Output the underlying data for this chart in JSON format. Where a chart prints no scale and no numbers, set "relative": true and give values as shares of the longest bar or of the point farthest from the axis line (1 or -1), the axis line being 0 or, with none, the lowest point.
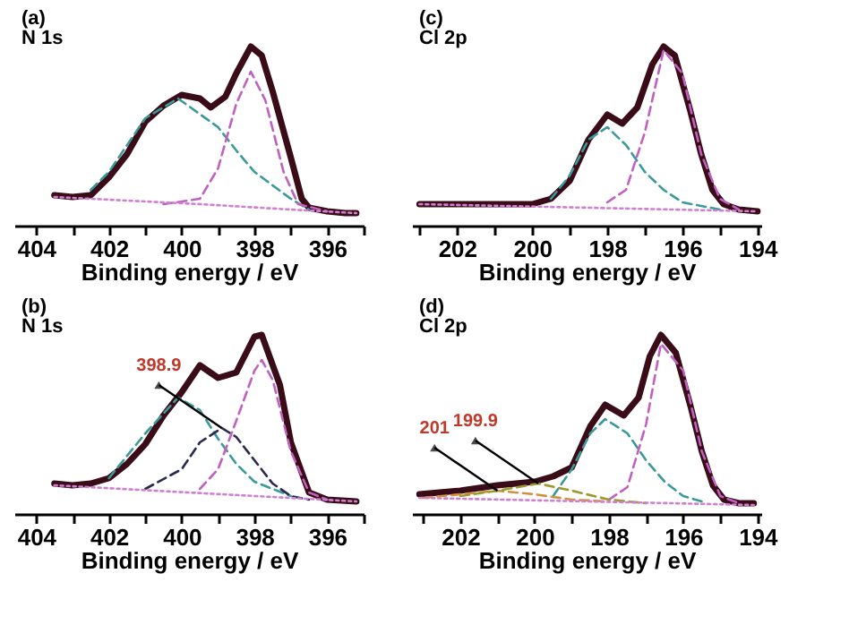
{
  "chart_data": [
    {
      "type": "line",
      "title": "(a)",
      "subtitle": "N 1s",
      "xlabel": "Binding energy / eV",
      "relative": true,
      "xlim": [
        404.6,
        395
      ],
      "xticks": [
        404,
        {
          "value": 403,
          "label": null
        },
        402,
        {
          "value": 401,
          "label": null
        },
        400,
        {
          "value": 399,
          "label": null
        },
        398,
        {
          "value": 397,
          "label": null
        },
        396,
        {
          "value": 395,
          "label": null
        }
      ],
      "tick_labels": "x",
      "grid": false,
      "marker": "none",
      "series": [
        {
          "color": "#3a0c18",
          "line_style": "solid",
          "x": [
            403.5,
            403,
            402.5,
            402,
            401.5,
            401,
            400.5,
            400,
            399.5,
            399.2,
            398.8,
            398.5,
            398.1,
            397.8,
            397.5,
            397,
            396.7,
            396.5,
            396,
            395.5,
            395.2
          ],
          "values": [
            0.17,
            0.16,
            0.17,
            0.27,
            0.4,
            0.58,
            0.67,
            0.73,
            0.71,
            0.66,
            0.72,
            0.85,
            1,
            0.95,
            0.75,
            0.38,
            0.15,
            0.1,
            0.08,
            0.07,
            0.07
          ]
        },
        {
          "color": "#3a9a9a",
          "line_style": "dashed",
          "x": [
            402.5,
            402,
            401,
            400.1,
            399,
            398.5,
            398,
            397,
            396.5
          ],
          "values": [
            0.2,
            0.3,
            0.6,
            0.71,
            0.55,
            0.42,
            0.3,
            0.15,
            0.09
          ]
        },
        {
          "color": "#c060c0",
          "line_style": "dashed",
          "x": [
            400.5,
            399.5,
            399,
            398.5,
            398.1,
            397.7,
            397.2,
            396.8,
            396
          ],
          "values": [
            0.12,
            0.15,
            0.32,
            0.68,
            0.86,
            0.7,
            0.3,
            0.12,
            0.08
          ]
        },
        {
          "color": "#d080d0",
          "line_style": "dotted",
          "x": [
            403.5,
            399.5,
            397,
            395.2
          ],
          "values": [
            0.16,
            0.12,
            0.09,
            0.07
          ]
        }
      ]
    },
    {
      "type": "line",
      "title": "(c)",
      "subtitle": "Cl 2p",
      "xlabel": "Binding energy / eV",
      "relative": true,
      "xlim": [
        203.2,
        193.9
      ],
      "xticks": [
        {
          "value": 203,
          "label": null
        },
        202,
        {
          "value": 201,
          "label": null
        },
        200,
        {
          "value": 199,
          "label": null
        },
        198,
        {
          "value": 197,
          "label": null
        },
        196,
        {
          "value": 195,
          "label": null
        },
        194
      ],
      "tick_labels": "x",
      "grid": false,
      "marker": "none",
      "series": [
        {
          "color": "#3a0c18",
          "line_style": "solid",
          "x": [
            203,
            201,
            200,
            199.5,
            199,
            198.5,
            198,
            197.6,
            197.2,
            196.8,
            196.5,
            196.2,
            195.8,
            195.5,
            195.2,
            194.9,
            194.5,
            194
          ],
          "values": [
            0.12,
            0.12,
            0.12,
            0.15,
            0.25,
            0.48,
            0.62,
            0.57,
            0.66,
            0.9,
            1,
            0.95,
            0.65,
            0.4,
            0.2,
            0.12,
            0.09,
            0.08
          ]
        },
        {
          "color": "#3a9a9a",
          "line_style": "dashed",
          "x": [
            199.5,
            199,
            198.5,
            198,
            197.5,
            197,
            196.5,
            196,
            195
          ],
          "values": [
            0.15,
            0.28,
            0.48,
            0.55,
            0.45,
            0.3,
            0.2,
            0.13,
            0.09
          ]
        },
        {
          "color": "#c060c0",
          "line_style": "dashed",
          "x": [
            198,
            197.5,
            197,
            196.5,
            196,
            195.5,
            195,
            194.5
          ],
          "values": [
            0.13,
            0.2,
            0.52,
            0.98,
            0.85,
            0.4,
            0.15,
            0.09
          ]
        },
        {
          "color": "#d080d0",
          "line_style": "dotted",
          "x": [
            203,
            194
          ],
          "values": [
            0.12,
            0.08
          ]
        }
      ]
    },
    {
      "type": "line",
      "title": "(b)",
      "subtitle": "N 1s",
      "xlabel": "Binding energy / eV",
      "relative": true,
      "xlim": [
        404.6,
        395
      ],
      "xticks": [
        404,
        {
          "value": 403,
          "label": null
        },
        402,
        {
          "value": 401,
          "label": null
        },
        400,
        {
          "value": 399,
          "label": null
        },
        398,
        {
          "value": 397,
          "label": null
        },
        396,
        {
          "value": 395,
          "label": null
        }
      ],
      "tick_labels": "x",
      "grid": false,
      "marker": "none",
      "annotations": [
        {
          "text": "398.9",
          "x": 398.9,
          "y": 0.48
        }
      ],
      "series": [
        {
          "color": "#3a0c18",
          "line_style": "solid",
          "x": [
            403.5,
            403,
            402.5,
            402,
            401.5,
            401,
            400.5,
            400,
            399.5,
            399,
            398.5,
            398,
            397.8,
            397.3,
            397,
            396.5,
            396,
            395.2
          ],
          "values": [
            0.17,
            0.16,
            0.17,
            0.2,
            0.28,
            0.39,
            0.55,
            0.68,
            0.83,
            0.76,
            0.79,
            0.99,
            1,
            0.72,
            0.4,
            0.12,
            0.08,
            0.07
          ]
        },
        {
          "color": "#3a9a9a",
          "line_style": "dashed",
          "x": [
            402,
            401,
            400.1,
            399.5,
            399,
            398.5,
            398,
            397
          ],
          "values": [
            0.2,
            0.45,
            0.65,
            0.58,
            0.42,
            0.28,
            0.18,
            0.1
          ]
        },
        {
          "color": "#2a2a50",
          "line_style": "dashed",
          "x": [
            401,
            400,
            399.5,
            398.9,
            398.5,
            398,
            397.5,
            397,
            396.5
          ],
          "values": [
            0.14,
            0.25,
            0.4,
            0.48,
            0.43,
            0.3,
            0.17,
            0.1,
            0.08
          ]
        },
        {
          "color": "#c060c0",
          "line_style": "dashed",
          "x": [
            399.5,
            399,
            398.5,
            398,
            397.8,
            397.5,
            397,
            396.5,
            396
          ],
          "values": [
            0.14,
            0.25,
            0.52,
            0.8,
            0.86,
            0.75,
            0.35,
            0.12,
            0.08
          ]
        },
        {
          "color": "#d080d0",
          "line_style": "dotted",
          "x": [
            403.5,
            395.2
          ],
          "values": [
            0.16,
            0.07
          ]
        }
      ]
    },
    {
      "type": "line",
      "title": "(d)",
      "subtitle": "Cl 2p",
      "xlabel": "Binding energy / eV",
      "relative": true,
      "xlim": [
        203.3,
        193.9
      ],
      "xticks": [
        {
          "value": 203,
          "label": null
        },
        202,
        {
          "value": 201,
          "label": null
        },
        200,
        {
          "value": 199,
          "label": null
        },
        198,
        {
          "value": 197,
          "label": null
        },
        196,
        {
          "value": 195,
          "label": null
        },
        194
      ],
      "tick_labels": "x",
      "grid": false,
      "marker": "none",
      "annotations": [
        {
          "text": "201",
          "x": 201,
          "y": 0.13
        },
        {
          "text": "199.9",
          "x": 199.9,
          "y": 0.17
        }
      ],
      "series": [
        {
          "color": "#3a0c18",
          "line_style": "solid",
          "x": [
            203.1,
            202,
            201,
            200,
            199.5,
            199,
            198.5,
            198.1,
            197.6,
            197.2,
            196.9,
            196.6,
            196.2,
            195.8,
            195.5,
            195.2,
            194.9,
            194.5,
            194.1
          ],
          "values": [
            0.11,
            0.13,
            0.16,
            0.18,
            0.21,
            0.26,
            0.49,
            0.61,
            0.55,
            0.65,
            0.88,
            1,
            0.9,
            0.6,
            0.35,
            0.16,
            0.08,
            0.06,
            0.06
          ]
        },
        {
          "color": "#3a9a9a",
          "line_style": "dashed",
          "x": [
            199.5,
            199,
            198.5,
            198.1,
            197.5,
            197,
            196.5,
            196,
            195.5
          ],
          "values": [
            0.1,
            0.25,
            0.45,
            0.53,
            0.45,
            0.3,
            0.18,
            0.1,
            0.07
          ]
        },
        {
          "color": "#c060c0",
          "line_style": "dashed",
          "x": [
            198,
            197.5,
            197,
            196.6,
            196,
            195.5,
            195,
            194.5
          ],
          "values": [
            0.08,
            0.15,
            0.5,
            0.95,
            0.8,
            0.35,
            0.1,
            0.06
          ]
        },
        {
          "color": "#d09040",
          "line_style": "dashed",
          "x": [
            203,
            202,
            201,
            200,
            199,
            198
          ],
          "values": [
            0.09,
            0.11,
            0.13,
            0.11,
            0.08,
            0.07
          ]
        },
        {
          "color": "#9a9a30",
          "line_style": "dashed",
          "x": [
            202,
            201,
            199.9,
            199,
            198,
            197
          ],
          "values": [
            0.1,
            0.13,
            0.17,
            0.13,
            0.08,
            0.06
          ]
        },
        {
          "color": "#d080d0",
          "line_style": "dotted",
          "x": [
            203.1,
            194.1
          ],
          "values": [
            0.09,
            0.05
          ]
        }
      ]
    }
  ]
}
